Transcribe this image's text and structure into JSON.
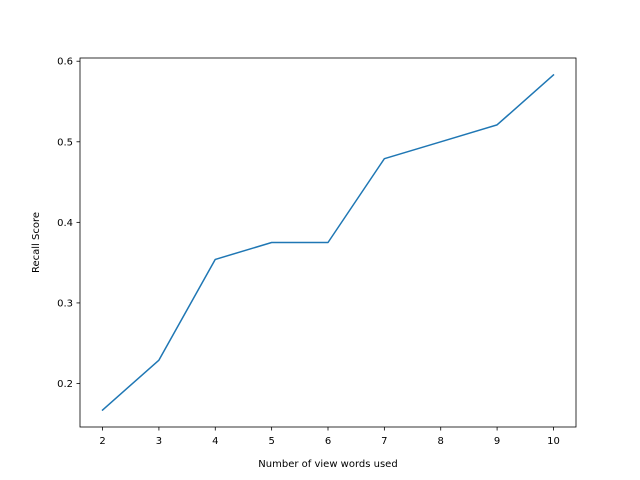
{
  "chart_data": {
    "type": "line",
    "title": "",
    "xlabel": "Number of view words used",
    "ylabel": "Recall Score",
    "xlim": [
      1.6,
      10.4
    ],
    "ylim": [
      0.146,
      0.604
    ],
    "x_ticks": [
      2,
      3,
      4,
      5,
      6,
      7,
      8,
      9,
      10
    ],
    "y_ticks": [
      0.2,
      0.3,
      0.4,
      0.5,
      0.6
    ],
    "y_tick_labels": [
      "0.2",
      "0.3",
      "0.4",
      "0.5",
      "0.6"
    ],
    "grid": false,
    "legend": "none",
    "series": [
      {
        "color": "#1f77b4",
        "x": [
          2,
          3,
          4,
          5,
          6,
          7,
          8,
          9,
          10
        ],
        "y": [
          0.167,
          0.229,
          0.354,
          0.375,
          0.375,
          0.479,
          0.5,
          0.521,
          0.583
        ]
      }
    ]
  }
}
